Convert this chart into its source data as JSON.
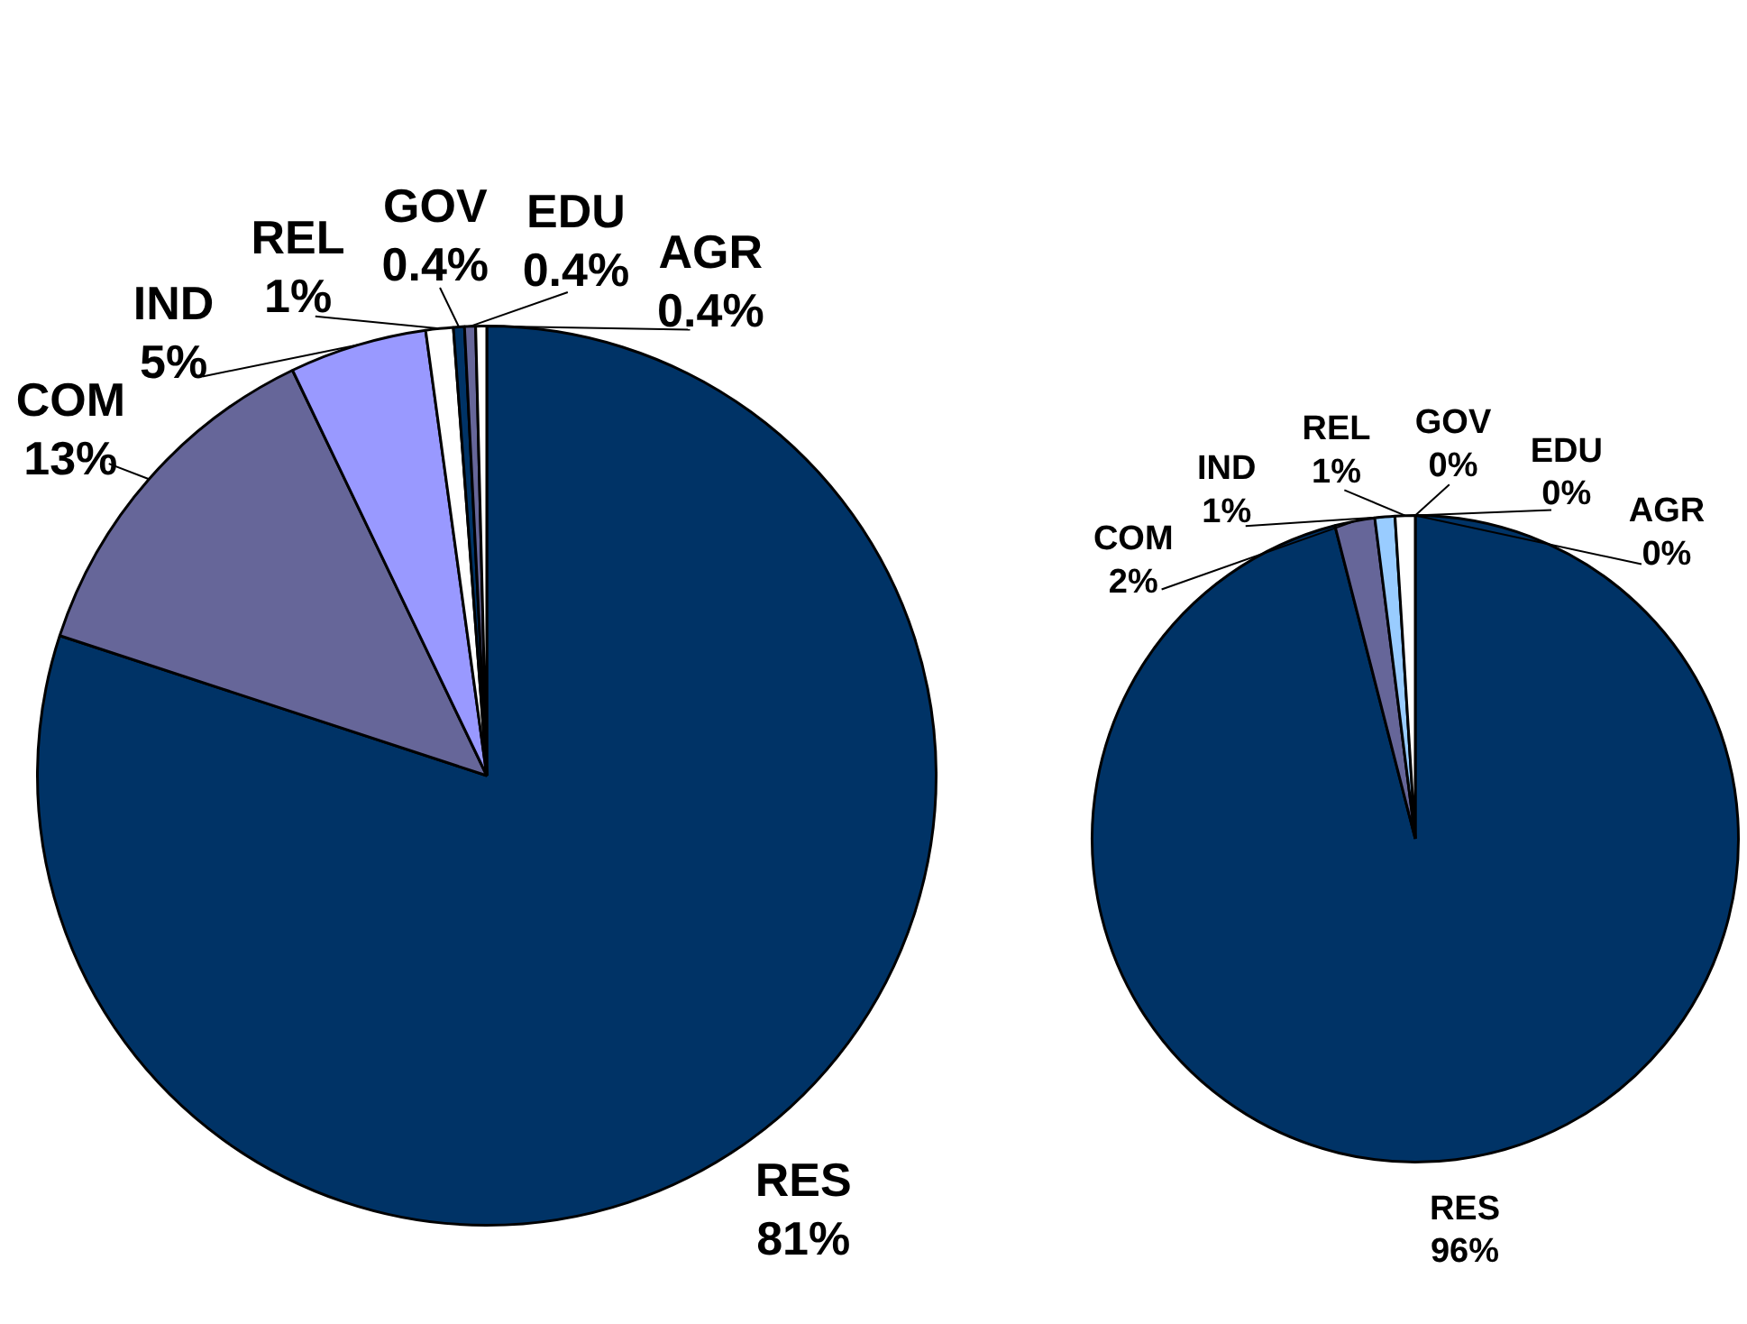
{
  "chart_data": [
    {
      "type": "pie",
      "categories": [
        "RES",
        "COM",
        "IND",
        "REL",
        "GOV",
        "EDU",
        "AGR"
      ],
      "values": [
        81,
        13,
        5,
        1,
        0.4,
        0.4,
        0.4
      ],
      "value_labels": [
        "81%",
        "13%",
        "5%",
        "1%",
        "0.4%",
        "0.4%",
        "0.4%"
      ],
      "colors": [
        "#003366",
        "#666699",
        "#9999ff",
        "#ffffff",
        "#003366",
        "#666699",
        "#ffffff"
      ]
    },
    {
      "type": "pie",
      "categories": [
        "RES",
        "COM",
        "IND",
        "REL",
        "GOV",
        "EDU",
        "AGR"
      ],
      "values": [
        96,
        2,
        1,
        1,
        0,
        0,
        0
      ],
      "value_labels": [
        "96%",
        "2%",
        "1%",
        "1%",
        "0%",
        "0%",
        "0%"
      ],
      "colors": [
        "#003366",
        "#666699",
        "#99ccff",
        "#ffffff",
        "#003366",
        "#666699",
        "#ffffff"
      ]
    }
  ]
}
